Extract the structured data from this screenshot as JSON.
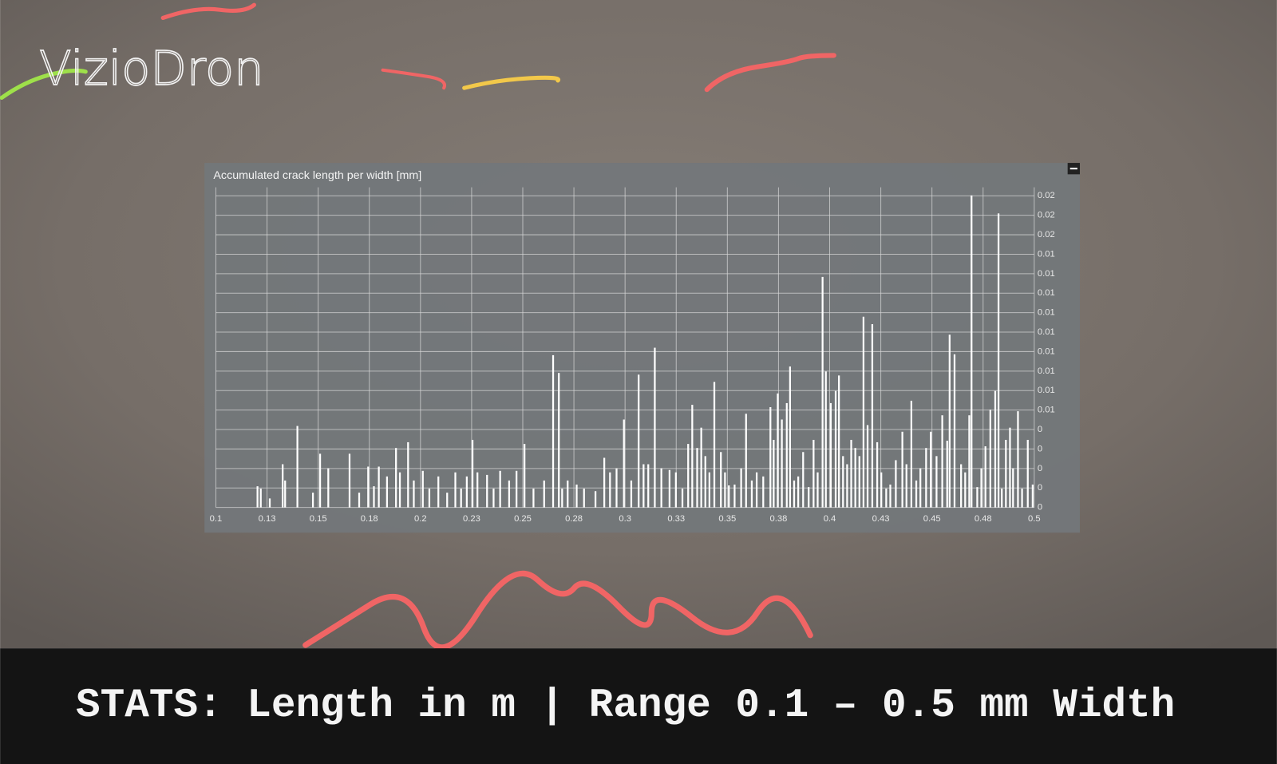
{
  "logo": "VizioDron",
  "caption": "STATS: Length in m | Range 0.1 – 0.5 mm Width",
  "chart_data": {
    "type": "bar",
    "title": "Accumulated crack length per width [mm]",
    "color": "#ffffff",
    "grid": true,
    "xlim": [
      0.1,
      0.5
    ],
    "xticks": [
      0.1,
      {
        "value": 0.125,
        "label": "0.13"
      },
      0.15,
      {
        "value": 0.175,
        "label": "0.18"
      },
      0.2,
      {
        "value": 0.225,
        "label": "0.23"
      },
      0.25,
      {
        "value": 0.275,
        "label": "0.28"
      },
      0.3,
      {
        "value": 0.325,
        "label": "0.33"
      },
      0.35,
      {
        "value": 0.375,
        "label": "0.38"
      },
      0.4,
      {
        "value": 0.425,
        "label": "0.43"
      },
      0.45,
      {
        "value": 0.475,
        "label": "0.48"
      },
      0.5
    ],
    "ylim": [
      0,
      0.0189
    ],
    "yticks": [
      0,
      {
        "value": 0.00115,
        "label": "0"
      },
      {
        "value": 0.0023,
        "label": "0"
      },
      {
        "value": 0.00345,
        "label": "0"
      },
      {
        "value": 0.0046,
        "label": "0"
      },
      {
        "value": 0.00575,
        "label": "0.01"
      },
      {
        "value": 0.0069,
        "label": "0.01"
      },
      {
        "value": 0.00805,
        "label": "0.01"
      },
      {
        "value": 0.0092,
        "label": "0.01"
      },
      {
        "value": 0.01035,
        "label": "0.01"
      },
      {
        "value": 0.0115,
        "label": "0.01"
      },
      {
        "value": 0.01265,
        "label": "0.01"
      },
      {
        "value": 0.0138,
        "label": "0.01"
      },
      {
        "value": 0.01495,
        "label": "0.01"
      },
      {
        "value": 0.0161,
        "label": "0.02"
      },
      {
        "value": 0.01725,
        "label": "0.02"
      },
      {
        "value": 0.0184,
        "label": "0.02"
      }
    ],
    "x": [
      0.1203,
      0.1219,
      0.1263,
      0.1326,
      0.1338,
      0.1398,
      0.1474,
      0.1509,
      0.1549,
      0.1653,
      0.17,
      0.1744,
      0.1772,
      0.1796,
      0.1836,
      0.188,
      0.1899,
      0.1939,
      0.1967,
      0.2011,
      0.2043,
      0.2087,
      0.213,
      0.217,
      0.2198,
      0.2226,
      0.2254,
      0.2278,
      0.2325,
      0.2357,
      0.2389,
      0.2433,
      0.2469,
      0.2508,
      0.2552,
      0.2604,
      0.2648,
      0.2676,
      0.2692,
      0.2719,
      0.2763,
      0.2799,
      0.2855,
      0.2898,
      0.2926,
      0.2958,
      0.2994,
      0.303,
      0.3066,
      0.309,
      0.3113,
      0.3145,
      0.3177,
      0.3217,
      0.3248,
      0.328,
      0.3308,
      0.3328,
      0.3352,
      0.3372,
      0.3392,
      0.3412,
      0.3436,
      0.3468,
      0.3488,
      0.3507,
      0.3535,
      0.3567,
      0.3591,
      0.3619,
      0.3643,
      0.3675,
      0.371,
      0.3726,
      0.3746,
      0.3766,
      0.379,
      0.3806,
      0.3826,
      0.3846,
      0.387,
      0.3897,
      0.3921,
      0.3941,
      0.3965,
      0.3981,
      0.4005,
      0.4029,
      0.4045,
      0.4065,
      0.4085,
      0.4105,
      0.4125,
      0.4145,
      0.4165,
      0.4185,
      0.4208,
      0.4232,
      0.4252,
      0.4276,
      0.4296,
      0.4323,
      0.4355,
      0.4375,
      0.4399,
      0.4423,
      0.4443,
      0.4471,
      0.4494,
      0.4522,
      0.455,
      0.4574,
      0.4586,
      0.461,
      0.4642,
      0.4662,
      0.4682,
      0.4693,
      0.4721,
      0.4741,
      0.4761,
      0.4785,
      0.4809,
      0.4825,
      0.4841,
      0.4861,
      0.4881,
      0.4896,
      0.492,
      0.494,
      0.4968,
      0.4992
    ],
    "values": [
      0.00125,
      0.00111,
      0.00053,
      0.00255,
      0.00159,
      0.00481,
      0.00087,
      0.00317,
      0.00231,
      0.00317,
      0.00087,
      0.00241,
      0.00125,
      0.00241,
      0.00183,
      0.00351,
      0.00207,
      0.00385,
      0.00159,
      0.00216,
      0.00111,
      0.00183,
      0.00087,
      0.00207,
      0.00111,
      0.00183,
      0.00399,
      0.00207,
      0.00192,
      0.00111,
      0.00216,
      0.00159,
      0.00216,
      0.00375,
      0.00111,
      0.00159,
      0.00899,
      0.00794,
      0.00111,
      0.00159,
      0.00135,
      0.00111,
      0.00096,
      0.00293,
      0.00207,
      0.00231,
      0.00519,
      0.00159,
      0.00784,
      0.00255,
      0.00255,
      0.00943,
      0.00231,
      0.00221,
      0.00207,
      0.00111,
      0.00375,
      0.00606,
      0.00351,
      0.00471,
      0.00303,
      0.00207,
      0.00741,
      0.00327,
      0.00207,
      0.0013,
      0.00135,
      0.00231,
      0.00553,
      0.00159,
      0.00207,
      0.00183,
      0.00592,
      0.00399,
      0.00673,
      0.00519,
      0.00616,
      0.00832,
      0.00159,
      0.00183,
      0.00327,
      0.0012,
      0.00399,
      0.00207,
      0.01361,
      0.00803,
      0.00616,
      0.00688,
      0.00779,
      0.00303,
      0.00255,
      0.00399,
      0.00351,
      0.00303,
      0.01126,
      0.00486,
      0.01082,
      0.00385,
      0.00207,
      0.00111,
      0.00135,
      0.00279,
      0.00447,
      0.00255,
      0.0063,
      0.00159,
      0.00231,
      0.00351,
      0.00447,
      0.00303,
      0.00544,
      0.00394,
      0.0102,
      0.00904,
      0.00255,
      0.00207,
      0.00544,
      0.01842,
      0.0012,
      0.00231,
      0.00361,
      0.00577,
      0.00688,
      0.01736,
      0.00111,
      0.00399,
      0.00471,
      0.00231,
      0.00568,
      0.00111,
      0.00399,
      0.00135
    ]
  }
}
